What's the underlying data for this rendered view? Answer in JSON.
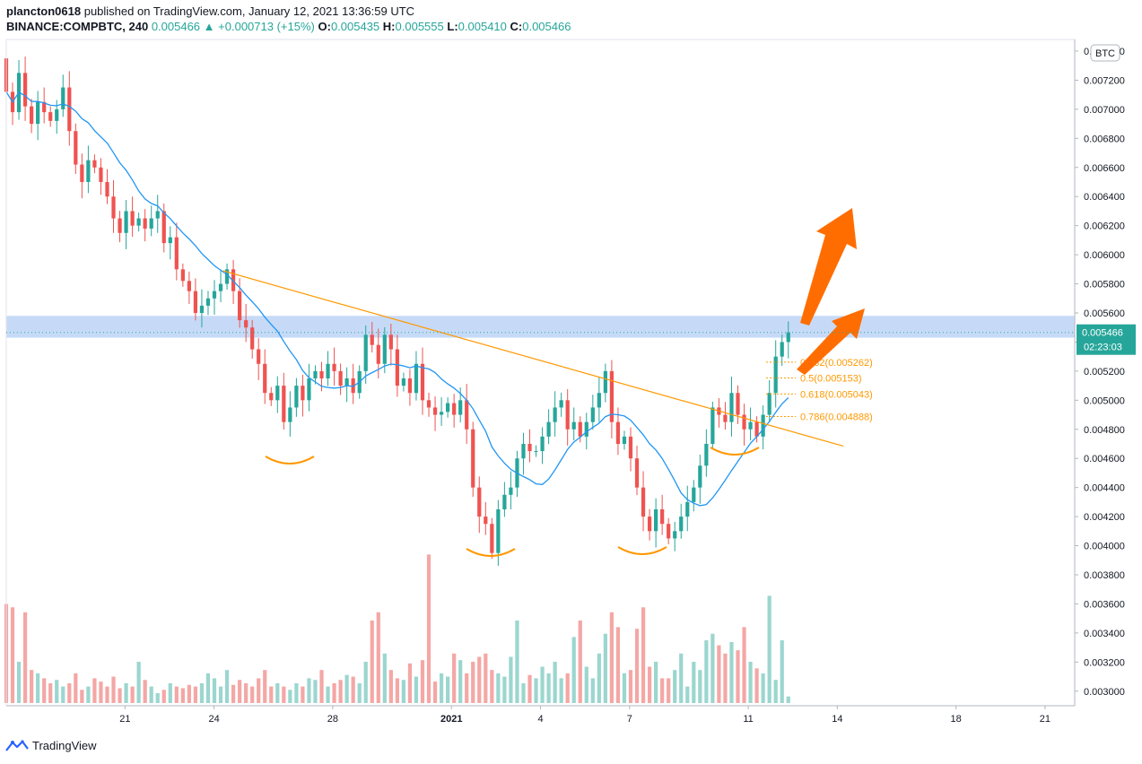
{
  "header": {
    "user": "plancton0618",
    "published_text": "published on TradingView.com, January 12, 2021 13:36:59 UTC",
    "symbol": "BINANCE:COMPBTC, 240",
    "last": "0.005466",
    "change": "▲ +0.000713 (+15%)",
    "o_label": "O:",
    "o_value": "0.005435",
    "h_label": "H:",
    "h_value": "0.005555",
    "l_label": "L:",
    "l_value": "0.005410",
    "c_label": "C:",
    "c_value": "0.005466"
  },
  "footer": {
    "brand": "TradingView"
  },
  "colors": {
    "up": "#26a69a",
    "down": "#ef5350",
    "ma": "#2196f3",
    "trend": "#ff9800",
    "zone": "#b3cdf5",
    "price_tag": "#26a69a",
    "arrow": "#ff6d00"
  },
  "chart_data": {
    "type": "candlestick",
    "currency_label": "BTC",
    "y_ticks": [
      "0.007400",
      "0.007200",
      "0.007000",
      "0.006800",
      "0.006600",
      "0.006400",
      "0.006200",
      "0.006000",
      "0.005800",
      "0.005600",
      "0.005400",
      "0.005200",
      "0.005000",
      "0.004800",
      "0.004600",
      "0.004400",
      "0.004200",
      "0.004000",
      "0.003800",
      "0.003600",
      "0.003400",
      "0.003200",
      "0.003000"
    ],
    "ylim": [
      0.0029,
      0.00748
    ],
    "x_ticks": [
      "21",
      "24",
      "28",
      "2021",
      "4",
      "7",
      "11",
      "14",
      "18",
      "21"
    ],
    "x_tick_days": [
      21,
      24,
      28,
      32,
      35,
      38,
      42,
      45,
      49,
      52
    ],
    "x_start_day": 17.0,
    "x_end_day": 53.0,
    "last_price_label": "0.005466",
    "countdown_label": "02:23:03",
    "resistance_zone": [
      0.00543,
      0.00558
    ],
    "trendline": {
      "from": [
        24.3,
        0.00589
      ],
      "to": [
        43.2,
        0.0048
      ]
    },
    "fibonacci": [
      {
        "label": "0.382(0.005262)",
        "value": 0.005262
      },
      {
        "label": "0.5(0.005153)",
        "value": 0.005153
      },
      {
        "label": "0.618(0.005043)",
        "value": 0.005043
      },
      {
        "label": "0.786(0.004888)",
        "value": 0.004888
      }
    ],
    "candles_close": [
      0.00712,
      0.00698,
      0.00725,
      0.00702,
      0.0069,
      0.00705,
      0.00698,
      0.00692,
      0.007,
      0.00715,
      0.00685,
      0.00662,
      0.0065,
      0.00665,
      0.0066,
      0.0065,
      0.0064,
      0.00625,
      0.00615,
      0.0063,
      0.0062,
      0.00625,
      0.00618,
      0.00625,
      0.0063,
      0.00608,
      0.00612,
      0.0059,
      0.00582,
      0.00575,
      0.0056,
      0.00565,
      0.0057,
      0.00575,
      0.0058,
      0.0059,
      0.00575,
      0.00555,
      0.0055,
      0.00535,
      0.00525,
      0.00505,
      0.005,
      0.0051,
      0.00485,
      0.00495,
      0.0051,
      0.005,
      0.00515,
      0.0052,
      0.00515,
      0.00525,
      0.0052,
      0.0051,
      0.00515,
      0.00505,
      0.0052,
      0.00545,
      0.00538,
      0.00525,
      0.00545,
      0.00535,
      0.0051,
      0.00515,
      0.00505,
      0.00525,
      0.005,
      0.00495,
      0.0049,
      0.00492,
      0.00498,
      0.0049,
      0.005,
      0.0048,
      0.0044,
      0.0042,
      0.00415,
      0.00395,
      0.00425,
      0.00435,
      0.0044,
      0.0046,
      0.0047,
      0.00465,
      0.00465,
      0.00475,
      0.00485,
      0.00495,
      0.005,
      0.0048,
      0.00485,
      0.00475,
      0.00485,
      0.00495,
      0.00505,
      0.0052,
      0.00485,
      0.0047,
      0.00475,
      0.0046,
      0.0044,
      0.0042,
      0.0041,
      0.00425,
      0.00415,
      0.00405,
      0.0041,
      0.0042,
      0.0043,
      0.0044,
      0.00455,
      0.0047,
      0.00495,
      0.0049,
      0.00485,
      0.00505,
      0.0049,
      0.0048,
      0.00485,
      0.00475,
      0.0049,
      0.00505,
      0.0053,
      0.0054,
      0.005466
    ],
    "volume": [
      0.6,
      0.58,
      0.25,
      0.55,
      0.2,
      0.18,
      0.15,
      0.12,
      0.14,
      0.1,
      0.12,
      0.18,
      0.08,
      0.1,
      0.15,
      0.13,
      0.1,
      0.16,
      0.09,
      0.12,
      0.1,
      0.25,
      0.14,
      0.1,
      0.06,
      0.08,
      0.12,
      0.1,
      0.09,
      0.11,
      0.1,
      0.12,
      0.18,
      0.15,
      0.1,
      0.2,
      0.11,
      0.14,
      0.12,
      0.1,
      0.15,
      0.2,
      0.1,
      0.12,
      0.1,
      0.08,
      0.12,
      0.1,
      0.15,
      0.14,
      0.2,
      0.1,
      0.12,
      0.14,
      0.17,
      0.16,
      0.12,
      0.25,
      0.5,
      0.55,
      0.3,
      0.2,
      0.15,
      0.14,
      0.24,
      0.16,
      0.26,
      0.9,
      0.13,
      0.18,
      0.16,
      0.3,
      0.26,
      0.18,
      0.25,
      0.28,
      0.3,
      0.2,
      0.18,
      0.16,
      0.28,
      0.5,
      0.12,
      0.17,
      0.15,
      0.22,
      0.18,
      0.25,
      0.15,
      0.18,
      0.4,
      0.5,
      0.22,
      0.15,
      0.3,
      0.42,
      0.55,
      0.46,
      0.18,
      0.2,
      0.45,
      0.58,
      0.22,
      0.25,
      0.15,
      0.15,
      0.2,
      0.3,
      0.1,
      0.25,
      0.2,
      0.38,
      0.42,
      0.35,
      0.3,
      0.37,
      0.32,
      0.46,
      0.25,
      0.21,
      0.18,
      0.65,
      0.14,
      0.38,
      0.04
    ]
  }
}
